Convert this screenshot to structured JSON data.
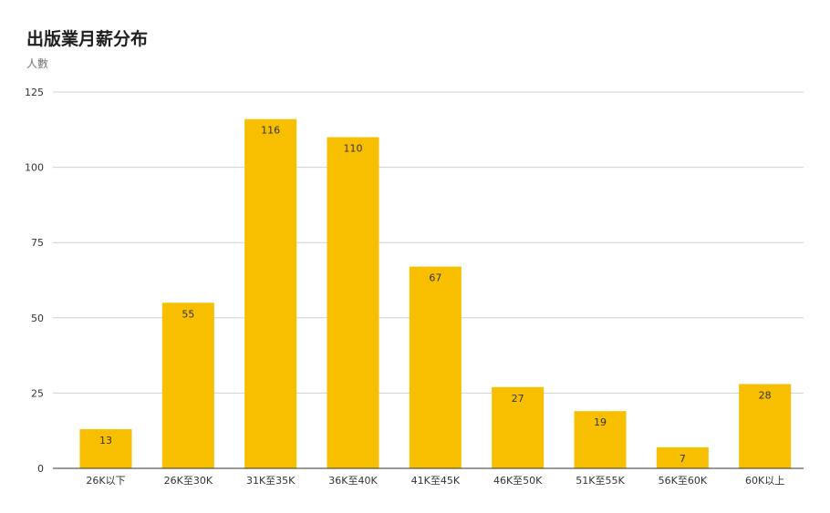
{
  "chart_data": {
    "type": "bar",
    "title": "出版業月薪分布",
    "subtitle": "人數",
    "xlabel": "",
    "ylabel": "人數",
    "categories": [
      "26K以下",
      "26K至30K",
      "31K至35K",
      "36K至40K",
      "41K至45K",
      "46K至50K",
      "51K至55K",
      "56K至60K",
      "60K以上"
    ],
    "values": [
      13,
      55,
      116,
      110,
      67,
      27,
      19,
      7,
      28
    ],
    "ylim": [
      0,
      125
    ],
    "yticks": [
      0,
      25,
      50,
      75,
      100,
      125
    ],
    "bar_color": "#F8BE00",
    "grid": true,
    "data_labels": true
  }
}
